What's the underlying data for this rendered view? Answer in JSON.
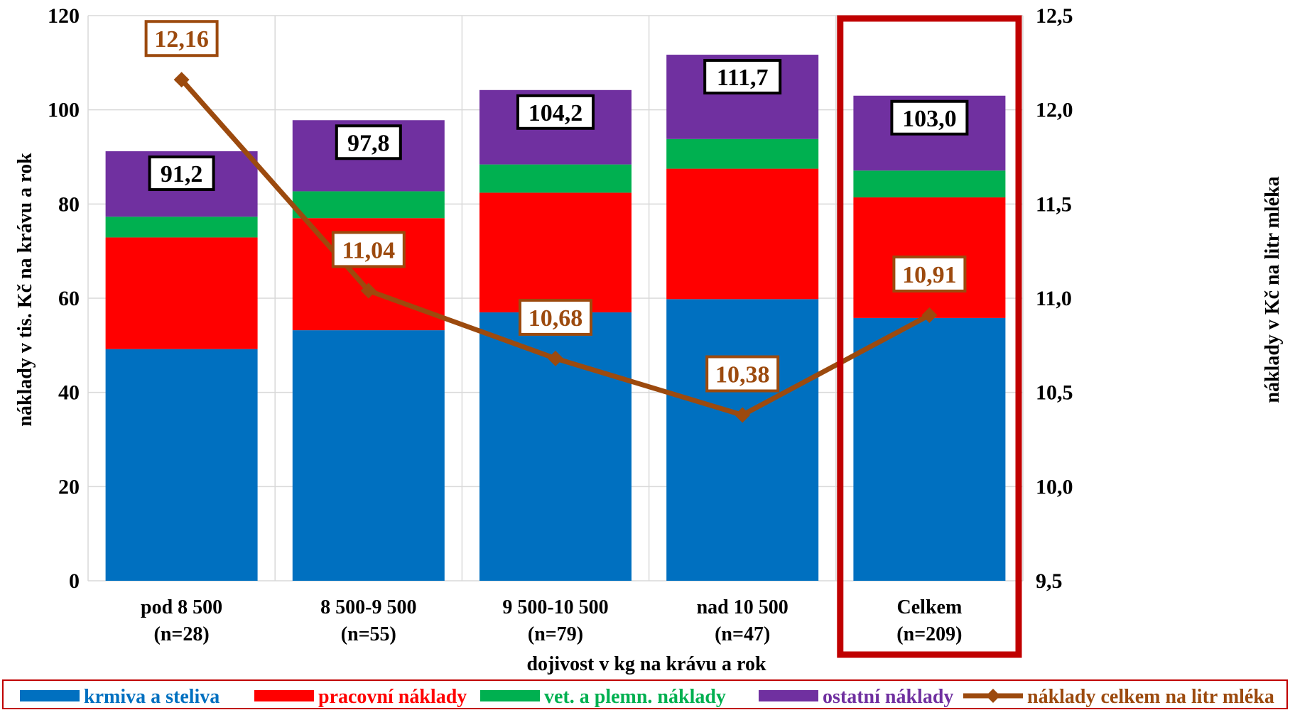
{
  "chart_data": {
    "type": "bar",
    "stacked": true,
    "categories": [
      [
        "pod 8 500",
        "(n=28)"
      ],
      [
        "8 500-9 500",
        "(n=55)"
      ],
      [
        "9 500-10 500",
        "(n=79)"
      ],
      [
        "nad 10 500",
        "(n=47)"
      ],
      [
        "Celkem",
        "(n=209)"
      ]
    ],
    "xlabel": "dojivost v kg na krávu a rok",
    "ylabel": "náklady v tis. Kč na krávu a rok",
    "y2label": "náklady v Kč na litr mléka",
    "ylim": [
      0,
      120
    ],
    "y_ticks": [
      "0",
      "20",
      "40",
      "60",
      "80",
      "100",
      "120"
    ],
    "y_tick_values": [
      0,
      20,
      40,
      60,
      80,
      100,
      120
    ],
    "y2lim": [
      9.5,
      12.5
    ],
    "y2_ticks": [
      "9,5",
      "10,0",
      "10,5",
      "11,0",
      "11,5",
      "12,0",
      "12,5"
    ],
    "y2_tick_values": [
      9.5,
      10.0,
      10.5,
      11.0,
      11.5,
      12.0,
      12.5
    ],
    "grid": true,
    "highlight_category": "Celkem",
    "series": [
      {
        "name": "krmiva a steliva",
        "color": "#0070C0",
        "values": [
          49.2,
          53.2,
          57.0,
          59.8,
          55.8
        ]
      },
      {
        "name": "pracovní náklady",
        "color": "#FF0000",
        "values": [
          23.7,
          23.8,
          25.4,
          27.7,
          25.6
        ]
      },
      {
        "name": "vet. a plemn. náklady",
        "color": "#00B050",
        "values": [
          4.4,
          5.7,
          6.0,
          6.3,
          5.7
        ]
      },
      {
        "name": "ostatní náklady",
        "color": "#7030A0",
        "values": [
          13.9,
          15.1,
          15.8,
          17.9,
          15.9
        ]
      }
    ],
    "totals": [
      91.2,
      97.8,
      104.2,
      111.7,
      103.0
    ],
    "total_labels": [
      "91,2",
      "97,8",
      "104,2",
      "111,7",
      "103,0"
    ],
    "line": {
      "name": "náklady celkem na litr mléka",
      "color": "#9C4A0E",
      "axis": "secondary",
      "values": [
        12.16,
        11.04,
        10.68,
        10.38,
        10.91
      ],
      "labels": [
        "12,16",
        "11,04",
        "10,68",
        "10,38",
        "10,91"
      ]
    },
    "legend_position": "bottom",
    "legend_colors": {
      "krmiva a steliva": "#0070C0",
      "pracovní náklady": "#FF0000",
      "vet. a plemn. náklady": "#00B050",
      "ostatní náklady": "#7030A0",
      "náklady celkem na litr mléka": "#9C4A0E"
    },
    "highlight_color": "#C00000",
    "legend_border_color": "#C00000"
  }
}
